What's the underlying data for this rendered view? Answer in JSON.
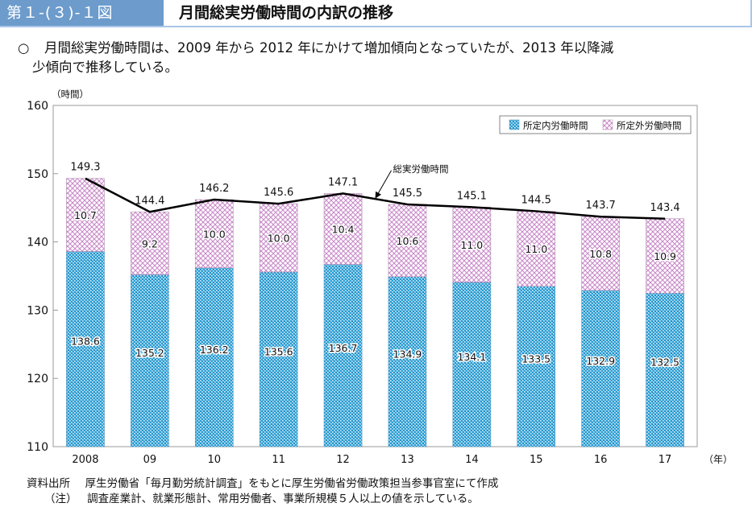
{
  "header": {
    "figure_number": "第１-(３)-１図",
    "title": "月間総実労働時間の内訳の推移"
  },
  "summary": {
    "bullet": "○",
    "line1": "月間総実労働時間は、2009 年から 2012 年にかけて増加傾向となっていたが、2013 年以降減",
    "line2": "少傾向で推移している。"
  },
  "footer": {
    "source_label": "資料出所",
    "source_text": "厚生労働省「毎月勤労統計調査」をもとに厚生労働省労働政策担当参事官室にて作成",
    "note_label": "（注）",
    "note_text": "調査産業計、就業形態計、常用労働者、事業所規模５人以上の値を示している。"
  },
  "colors": {
    "header_bg": "#6c9bcc",
    "header_border": "#a9c6e8",
    "scheduled_fill": "#2a9fd6",
    "overtime_fill": "#c98ac9",
    "line": "#000000"
  },
  "chart_data": {
    "type": "bar",
    "stacked": true,
    "title": "月間総実労働時間の内訳の推移",
    "ylabel": "（時間）",
    "xlabel": "（年）",
    "ylim": [
      110,
      160
    ],
    "yticks": [
      110,
      120,
      130,
      140,
      150,
      160
    ],
    "grid": false,
    "legend_position": "top-right",
    "categories": [
      "2008",
      "09",
      "10",
      "11",
      "12",
      "13",
      "14",
      "15",
      "16",
      "17"
    ],
    "series": [
      {
        "name": "所定内労働時間",
        "type": "bar",
        "values": [
          138.6,
          135.2,
          136.2,
          135.6,
          136.7,
          134.9,
          134.1,
          133.5,
          132.9,
          132.5
        ]
      },
      {
        "name": "所定外労働時間",
        "type": "bar",
        "values": [
          10.7,
          9.2,
          10.0,
          10.0,
          10.4,
          10.6,
          11.0,
          11.0,
          10.8,
          10.9
        ]
      },
      {
        "name": "総実労働時間",
        "type": "line",
        "values": [
          149.3,
          144.4,
          146.2,
          145.6,
          147.1,
          145.5,
          145.1,
          144.5,
          143.7,
          143.4
        ]
      }
    ],
    "annotations": [
      {
        "text": "総実労働時間",
        "points_to": "総実労働時間 line near 2012-13"
      }
    ]
  }
}
